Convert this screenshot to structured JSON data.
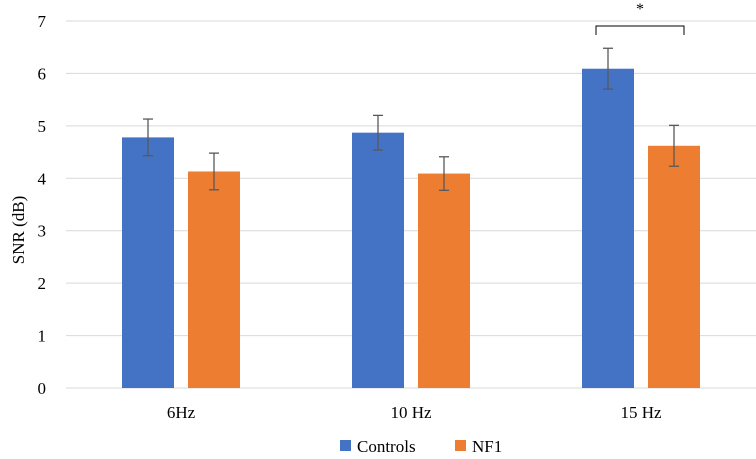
{
  "chart_data": {
    "type": "bar",
    "categories": [
      "6Hz",
      "10 Hz",
      "15 Hz"
    ],
    "series": [
      {
        "name": "Controls",
        "color": "#4472C4",
        "values": [
          4.78,
          4.87,
          6.09
        ],
        "errors": [
          0.35,
          0.33,
          0.39
        ]
      },
      {
        "name": "NF1",
        "color": "#ED7D31",
        "values": [
          4.13,
          4.09,
          4.62
        ],
        "errors": [
          0.35,
          0.32,
          0.39
        ]
      }
    ],
    "title": "",
    "xlabel": "",
    "ylabel": "SNR (dB)",
    "ylim": [
      0,
      7
    ],
    "yticks": [
      "0",
      "1",
      "2",
      "3",
      "4",
      "5",
      "6",
      "7"
    ],
    "grid": true,
    "legend_position": "bottom",
    "annotations": [
      {
        "text": "*",
        "category": "15 Hz",
        "type": "significance-bracket"
      }
    ]
  }
}
